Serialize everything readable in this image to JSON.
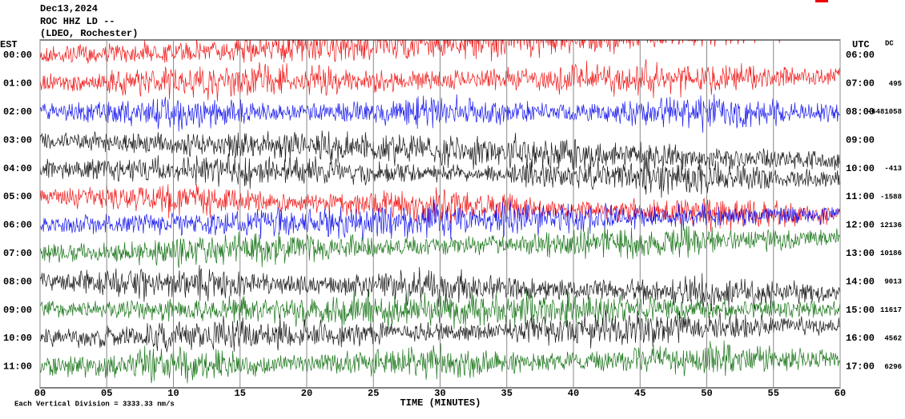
{
  "header": {
    "date": "Dec13,2024",
    "station": "ROC HHZ LD --",
    "network": "(LDEO, Rochester)"
  },
  "left_axis": {
    "title": "EST",
    "hours": [
      "00:00",
      "01:00",
      "02:00",
      "03:00",
      "04:00",
      "05:00",
      "06:00",
      "07:00",
      "08:00",
      "09:00",
      "10:00",
      "11:00"
    ]
  },
  "right_axis": {
    "title": "UTC",
    "dc_title": "DC",
    "hours": [
      "06:00",
      "07:00",
      "08:00",
      "09:00",
      "10:00",
      "11:00",
      "12:00",
      "13:00",
      "14:00",
      "15:00",
      "16:00",
      "17:00"
    ],
    "dc_values": [
      null,
      "495",
      "-6481058",
      null,
      "-413",
      "-1588",
      "12136",
      "10186",
      "9013",
      "11617",
      "4562",
      "6296"
    ]
  },
  "x_axis": {
    "title": "TIME (MINUTES)",
    "ticks": [
      "00",
      "05",
      "10",
      "15",
      "20",
      "25",
      "30",
      "35",
      "40",
      "45",
      "50",
      "55",
      "60"
    ]
  },
  "footer": "Each Vertical Division = 3333.33 nm/s"
}
